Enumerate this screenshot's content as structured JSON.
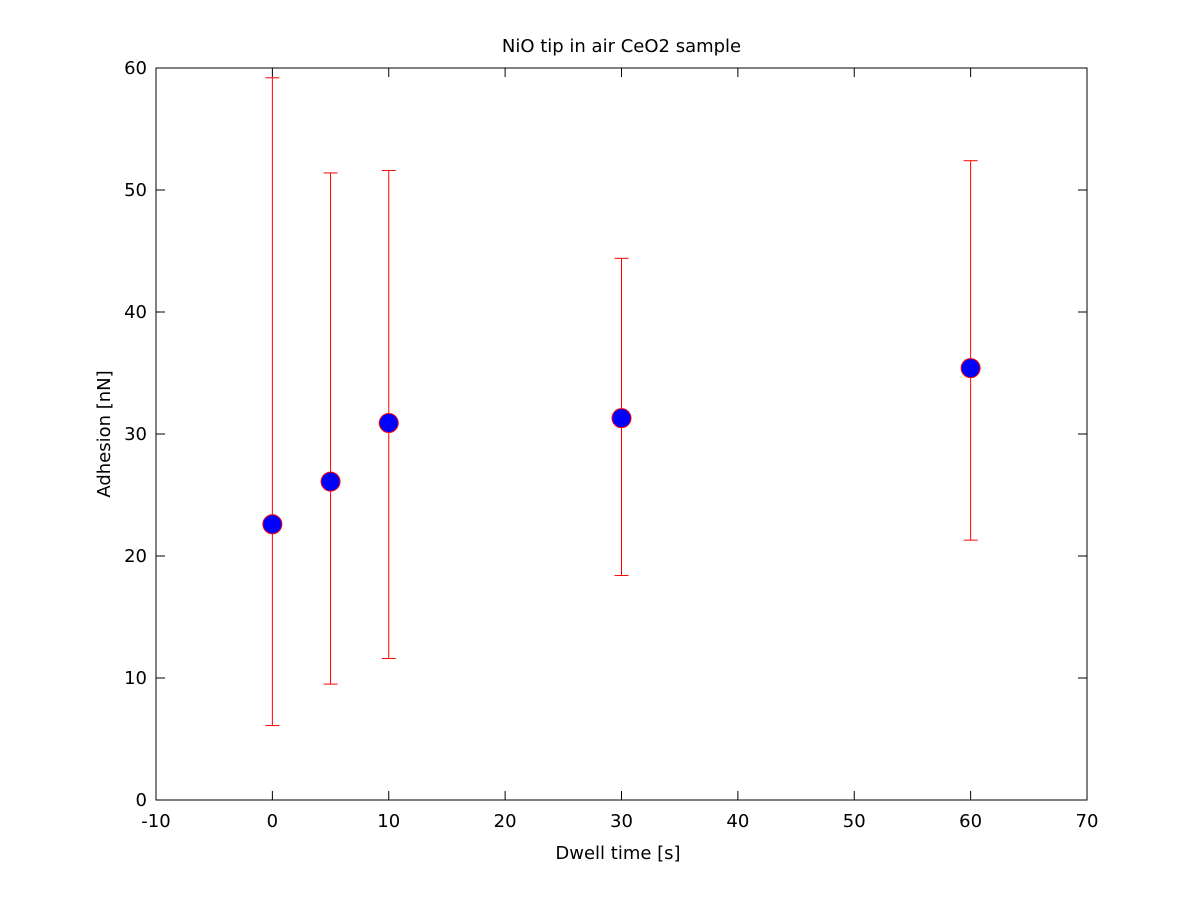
{
  "chart_data": {
    "type": "scatter",
    "title": "NiO tip in air CeO2 sample",
    "xlabel": "Dwell time [s]",
    "ylabel": "Adhesion [nN]",
    "xlim": [
      -10,
      70
    ],
    "ylim": [
      0,
      60
    ],
    "xticks": [
      -10,
      0,
      10,
      20,
      30,
      40,
      50,
      60,
      70
    ],
    "yticks": [
      0,
      10,
      20,
      30,
      40,
      50,
      60
    ],
    "grid": false,
    "legend": "none",
    "series": [
      {
        "x": [
          0,
          5,
          10,
          30,
          60
        ],
        "y": [
          22.6,
          26.1,
          30.9,
          31.3,
          35.4
        ],
        "err_low": [
          6.1,
          9.5,
          11.6,
          18.4,
          21.3
        ],
        "err_high": [
          59.2,
          51.4,
          51.6,
          44.4,
          52.4
        ],
        "marker_color": "#0000ff",
        "marker_edge_color": "#ff0000",
        "errorbar_color": "#ff0000"
      }
    ]
  }
}
